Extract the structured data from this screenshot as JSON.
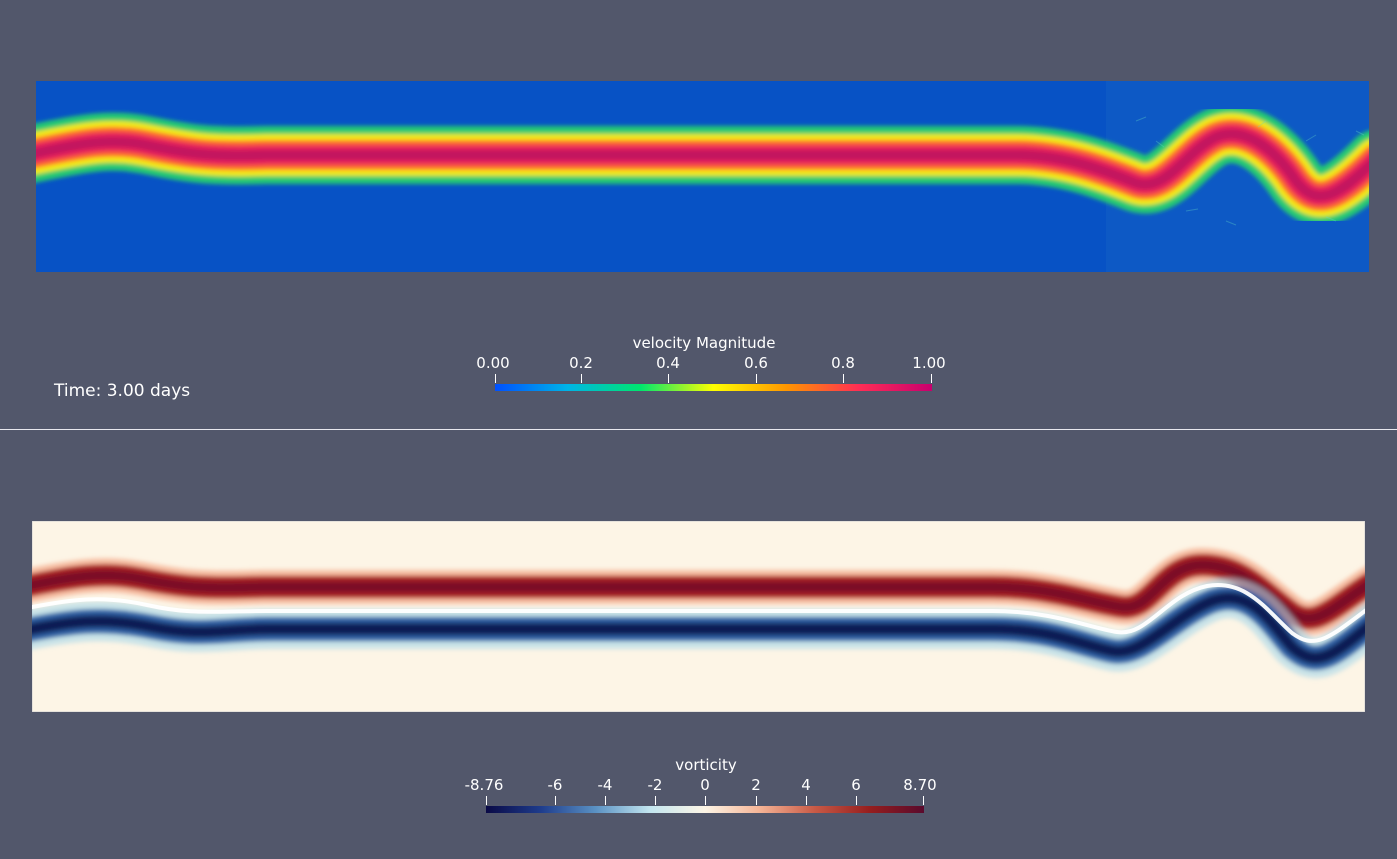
{
  "top_panel": {
    "time_label": "Time: 3.00 days",
    "colorbar": {
      "title": "velocity Magnitude",
      "ticks": [
        "0.00",
        "0.2",
        "0.4",
        "0.6",
        "0.8",
        "1.00"
      ],
      "range": [
        0.0,
        1.0
      ],
      "colors": [
        "#0050ff",
        "#00b4e6",
        "#00e66e",
        "#ffff00",
        "#ff9600",
        "#ff2d55",
        "#c8006e"
      ]
    },
    "background_color": "#0752c5"
  },
  "bottom_panel": {
    "colorbar": {
      "title": "vorticity",
      "ticks": [
        "-8.76",
        "-6",
        "-4",
        "-2",
        "0",
        "2",
        "4",
        "6",
        "8.70"
      ],
      "range": [
        -8.76,
        8.7
      ],
      "colors": [
        "#0a0a46",
        "#1e3c8c",
        "#5a91c3",
        "#c3e6f0",
        "#fdf5e6",
        "#f5b496",
        "#c85a46",
        "#961e1e",
        "#5a0a2d"
      ]
    },
    "background_color": "#fdf5e6"
  }
}
